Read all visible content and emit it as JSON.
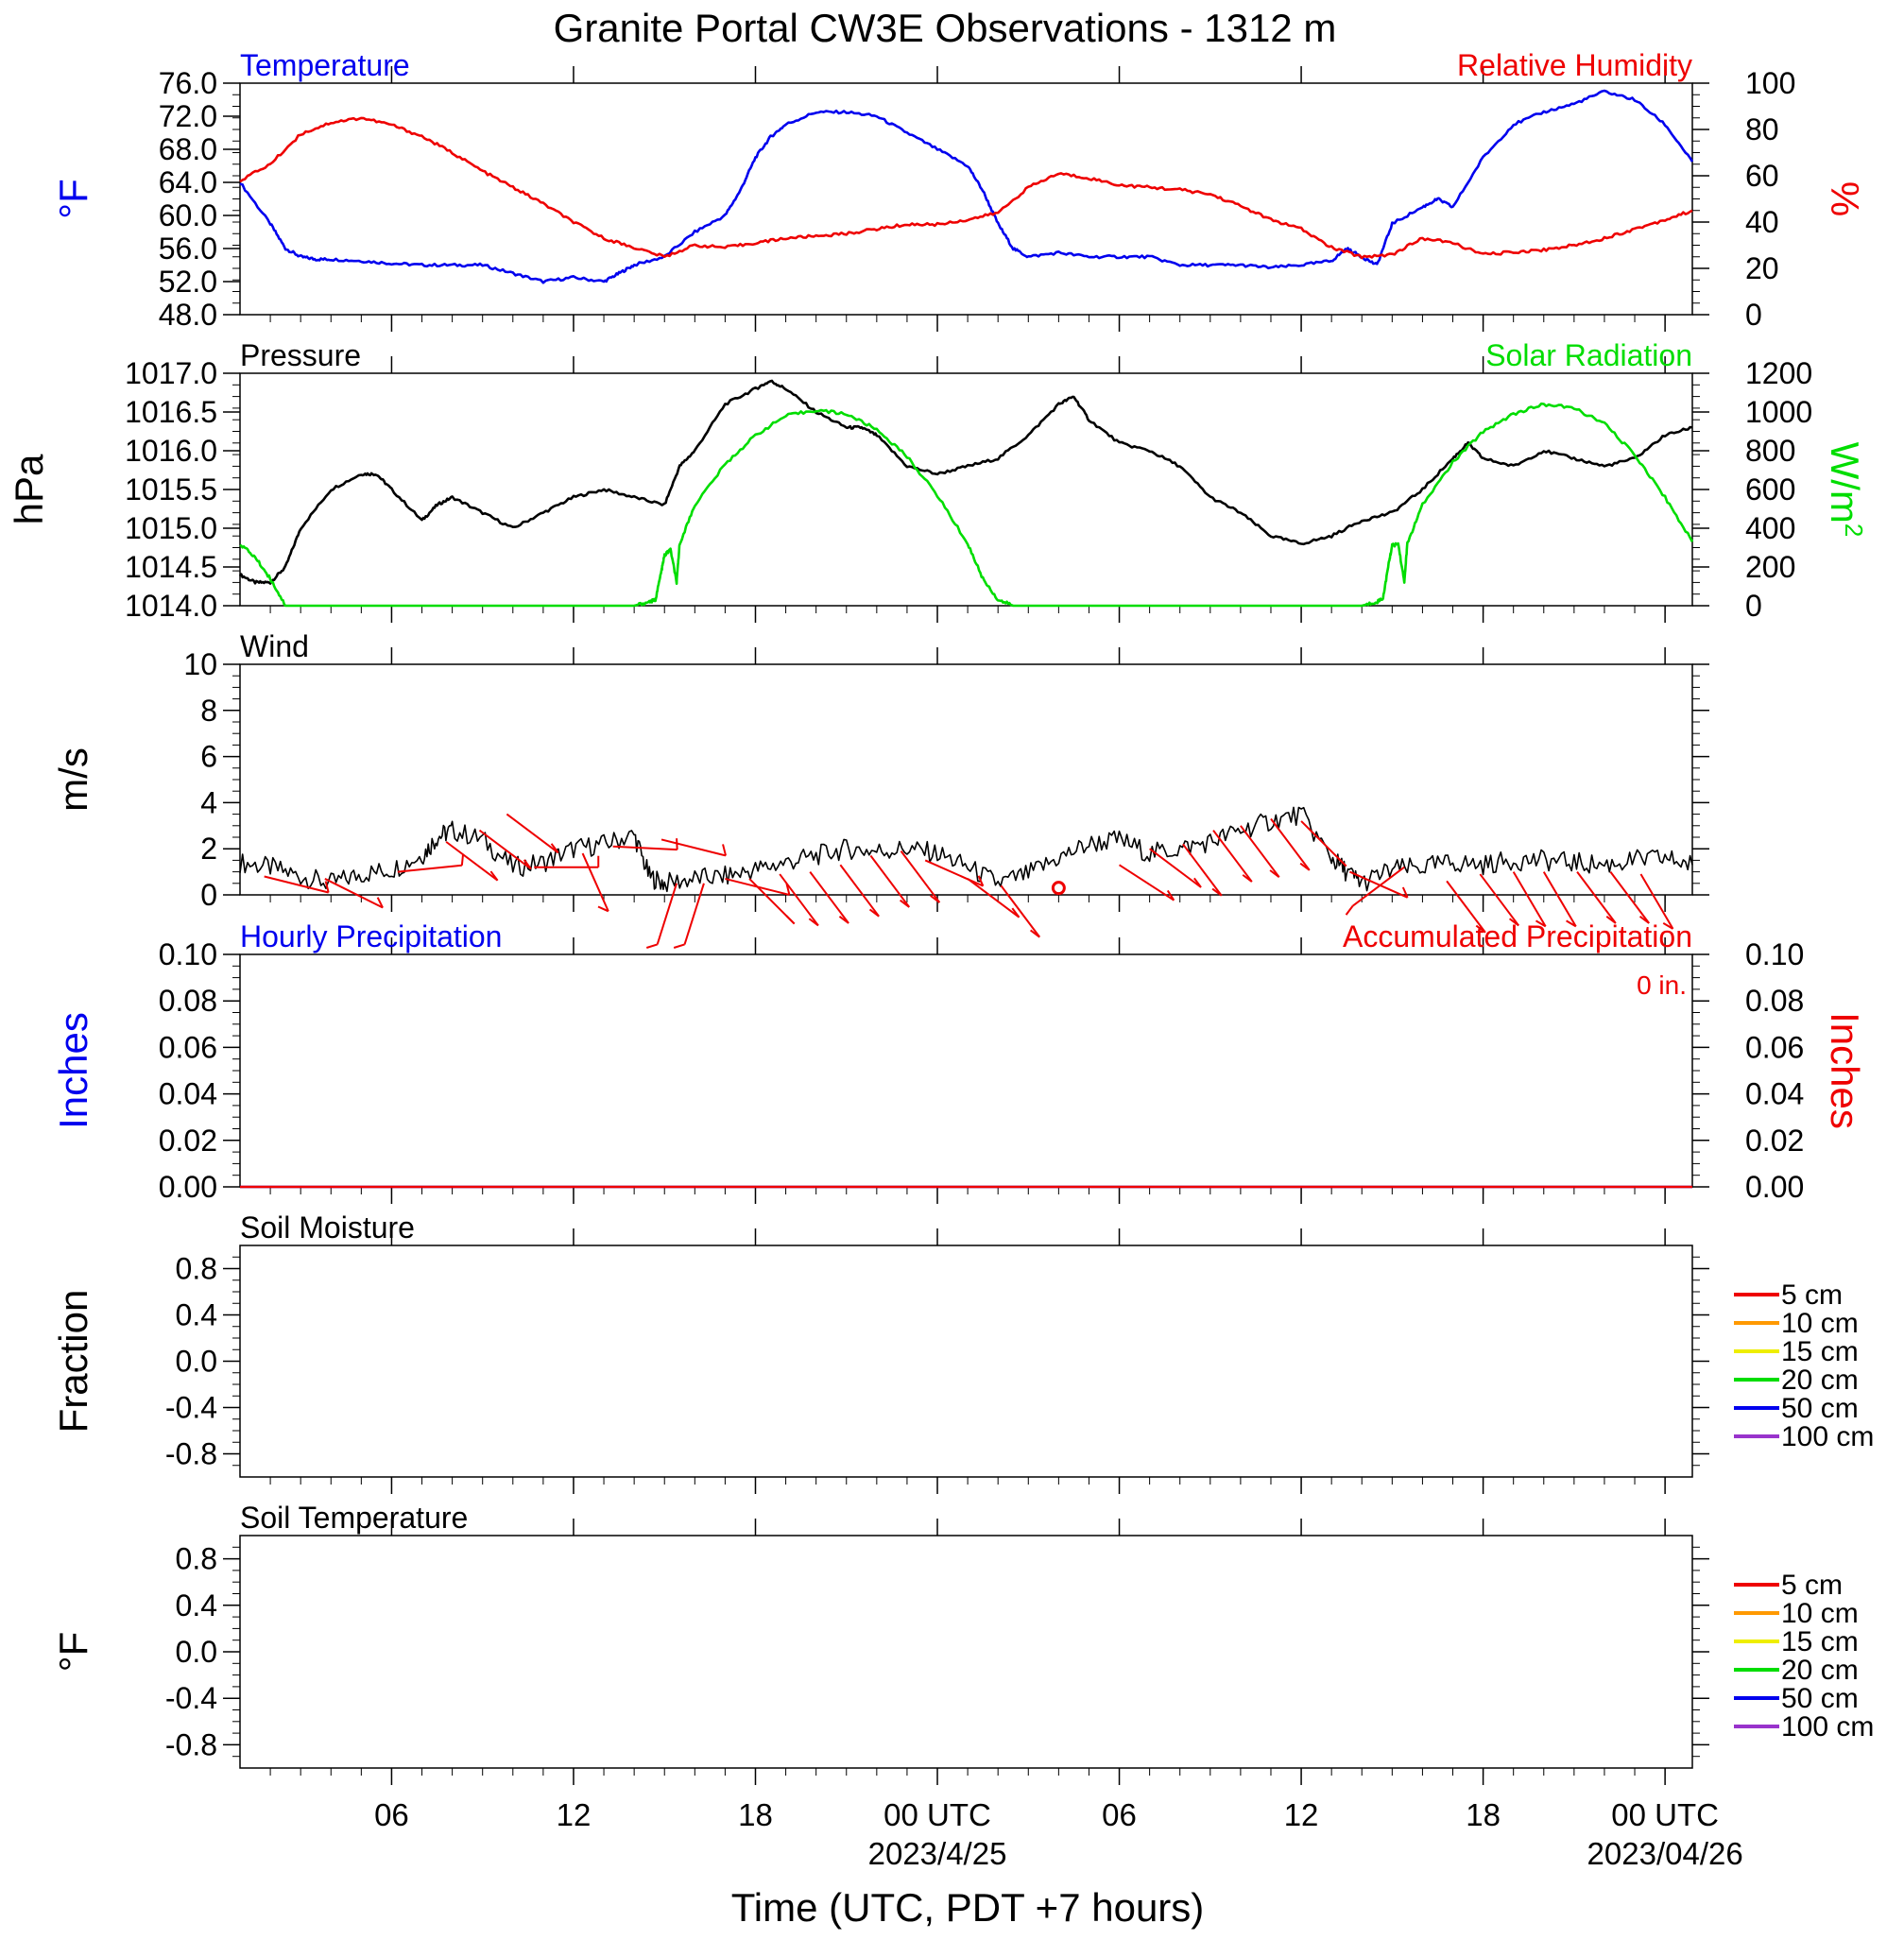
{
  "title": "Granite Portal CW3E Observations - 1312 m",
  "colors": {
    "blue": "#0000ee",
    "red": "#ee0000",
    "green": "#00dd00",
    "black": "#000000"
  },
  "x_axis": {
    "label": "Time (UTC, PDT +7 hours)",
    "range_hours": [
      0,
      47.9
    ],
    "ticks": [
      {
        "hour": 5,
        "label": "06"
      },
      {
        "hour": 11,
        "label": "12"
      },
      {
        "hour": 17,
        "label": "18"
      },
      {
        "hour": 23,
        "label": "00 UTC",
        "sublabel": "2023/4/25"
      },
      {
        "hour": 29,
        "label": "06"
      },
      {
        "hour": 35,
        "label": "12"
      },
      {
        "hour": 41,
        "label": "18"
      },
      {
        "hour": 47,
        "label": "00 UTC",
        "sublabel": "2023/04/26"
      }
    ]
  },
  "chart_data": [
    {
      "type": "line",
      "title": "Temperature",
      "title_right": "Relative Humidity",
      "ylabel": "°F",
      "ylabel_right": "%",
      "ylim": [
        48,
        76
      ],
      "ylim_right": [
        0,
        100
      ],
      "yticks": [
        "48.0",
        "52.0",
        "56.0",
        "60.0",
        "64.0",
        "68.0",
        "72.0",
        "76.0"
      ],
      "yticks_right": [
        "0",
        "20",
        "40",
        "60",
        "80",
        "100"
      ],
      "series": [
        {
          "name": "Temperature",
          "color": "blue",
          "axis": "left",
          "x": [
            0,
            1,
            1.5,
            2,
            2.5,
            3,
            4,
            5,
            6,
            7,
            8,
            9,
            10,
            11,
            12,
            12.5,
            13,
            14,
            15,
            16,
            16.5,
            17,
            17.5,
            18,
            19,
            20,
            21,
            22,
            23,
            24,
            24.5,
            25,
            25.5,
            26,
            27,
            28,
            29,
            30,
            31,
            32,
            33,
            34,
            35,
            36,
            36.5,
            37,
            37.5,
            38,
            39,
            39.5,
            40,
            41,
            42,
            43,
            44,
            45,
            46,
            47,
            47.9
          ],
          "y": [
            64,
            59,
            56,
            55,
            54.7,
            54.7,
            54.5,
            54.2,
            54,
            54,
            54,
            53,
            52,
            52.5,
            52,
            53,
            54,
            55,
            58,
            60,
            63,
            67,
            69.5,
            71,
            72.5,
            72.5,
            72,
            70,
            68,
            66,
            63,
            59,
            56,
            55,
            55.5,
            55,
            55,
            55,
            54,
            54,
            54,
            53.7,
            54,
            54.5,
            56,
            55,
            54,
            59,
            61,
            62,
            61,
            67,
            71,
            72.5,
            73.5,
            75,
            74,
            71,
            66.5
          ]
        },
        {
          "name": "Relative Humidity",
          "color": "red",
          "axis": "right",
          "x": [
            0,
            1,
            2,
            3,
            4,
            5,
            6,
            7,
            8,
            9,
            10,
            11,
            12,
            13,
            14,
            15,
            16,
            17,
            18,
            19,
            20,
            21,
            22,
            23,
            24,
            25,
            26,
            27,
            28,
            29,
            30,
            31,
            32,
            33,
            34,
            35,
            36,
            37,
            38,
            39,
            40,
            41,
            42,
            43,
            44,
            45,
            46,
            47,
            47.9
          ],
          "y": [
            58,
            65,
            78,
            83,
            85,
            82,
            77,
            70,
            62,
            55,
            48,
            40,
            33,
            29,
            25,
            30,
            29,
            31,
            33,
            34,
            35,
            37,
            39,
            39,
            41,
            44,
            55,
            61,
            59,
            56,
            55,
            54,
            52,
            47,
            41,
            37,
            29,
            25,
            26,
            33,
            31,
            26,
            27,
            28,
            30,
            33,
            37,
            41,
            45
          ]
        }
      ]
    },
    {
      "type": "line",
      "title": "Pressure",
      "title_right": "Solar Radiation",
      "ylabel": "hPa",
      "ylabel_right": "W/m",
      "ylabel_right_sup": "2",
      "ylim": [
        1014.0,
        1017.0
      ],
      "ylim_right": [
        0,
        1200
      ],
      "yticks": [
        "1014.0",
        "1014.5",
        "1015.0",
        "1015.5",
        "1016.0",
        "1016.5",
        "1017.0"
      ],
      "yticks_right": [
        "0",
        "200",
        "400",
        "600",
        "800",
        "1000",
        "1200"
      ],
      "series": [
        {
          "name": "Pressure",
          "color": "black",
          "axis": "left",
          "x": [
            0,
            0.5,
            1,
            1.5,
            2,
            3,
            4,
            4.5,
            5,
            6,
            6.5,
            7,
            8,
            9,
            10,
            11,
            12,
            13,
            14,
            14.5,
            15,
            16,
            17,
            17.5,
            18,
            19,
            20,
            20.5,
            21,
            22,
            23,
            24,
            25,
            26,
            27,
            27.5,
            28,
            29,
            30,
            31,
            32,
            33,
            34,
            35,
            36,
            37,
            38,
            39,
            40,
            40.5,
            41,
            42,
            43,
            44,
            45,
            46,
            47,
            47.9
          ],
          "y": [
            1014.4,
            1014.3,
            1014.3,
            1014.5,
            1015.0,
            1015.5,
            1015.7,
            1015.7,
            1015.5,
            1015.1,
            1015.3,
            1015.4,
            1015.2,
            1015.0,
            1015.2,
            1015.4,
            1015.5,
            1015.4,
            1015.3,
            1015.8,
            1016.0,
            1016.6,
            1016.8,
            1016.9,
            1016.8,
            1016.5,
            1016.3,
            1016.3,
            1016.2,
            1015.8,
            1015.7,
            1015.8,
            1015.9,
            1016.2,
            1016.6,
            1016.7,
            1016.4,
            1016.1,
            1016.0,
            1015.8,
            1015.4,
            1015.2,
            1014.9,
            1014.8,
            1014.9,
            1015.1,
            1015.2,
            1015.5,
            1015.9,
            1016.1,
            1015.9,
            1015.8,
            1016.0,
            1015.9,
            1015.8,
            1015.9,
            1016.2,
            1016.3
          ]
        },
        {
          "name": "Solar Radiation",
          "color": "green",
          "axis": "right",
          "x": [
            0,
            0.5,
            1,
            1.5,
            12,
            13,
            13.5,
            13.7,
            13.9,
            14,
            14.2,
            14.4,
            14.5,
            15,
            16,
            17,
            18,
            19,
            20,
            21,
            22,
            23,
            24,
            24.5,
            25,
            25.5,
            36,
            37,
            37.5,
            37.7,
            37.9,
            38,
            38.2,
            38.4,
            38.5,
            39,
            40,
            41,
            42,
            43,
            44,
            45,
            46,
            47,
            47.9
          ],
          "y": [
            320,
            250,
            140,
            0,
            0,
            0,
            20,
            30,
            180,
            260,
            290,
            120,
            320,
            520,
            730,
            880,
            980,
            1010,
            990,
            910,
            770,
            570,
            320,
            140,
            30,
            0,
            0,
            0,
            20,
            40,
            230,
            310,
            320,
            120,
            320,
            520,
            740,
            900,
            990,
            1040,
            1020,
            940,
            780,
            560,
            330
          ]
        }
      ]
    },
    {
      "type": "line",
      "title": "Wind",
      "ylabel": "m/s",
      "ylim": [
        0,
        10
      ],
      "yticks": [
        "0",
        "2",
        "4",
        "6",
        "8",
        "10"
      ],
      "series": [
        {
          "name": "Wind speed",
          "color": "black",
          "x": [
            0,
            1,
            2,
            3,
            4,
            5,
            6,
            6.5,
            7,
            8,
            9,
            10,
            11,
            12,
            13,
            13.5,
            14,
            15,
            16,
            17,
            18,
            19,
            20,
            21,
            22,
            23,
            24,
            25,
            26,
            27,
            28,
            29,
            30,
            31,
            32,
            33,
            34,
            35,
            36,
            36.5,
            37,
            38,
            39,
            40,
            41,
            42,
            43,
            44,
            45,
            46,
            47,
            47.9
          ],
          "y": [
            1.4,
            1.2,
            0.8,
            0.5,
            0.9,
            1.1,
            1.7,
            2.5,
            2.8,
            2.4,
            1.2,
            1.4,
            2.0,
            2.2,
            2.6,
            0.8,
            0.5,
            0.7,
            0.8,
            1.1,
            1.4,
            1.7,
            2.0,
            1.9,
            2.0,
            1.8,
            1.2,
            0.5,
            0.9,
            1.6,
            2.2,
            2.4,
            1.8,
            2.0,
            2.3,
            2.8,
            3.2,
            3.5,
            1.6,
            1.0,
            0.5,
            1.1,
            1.2,
            1.4,
            1.3,
            1.5,
            1.5,
            1.4,
            1.3,
            1.5,
            1.6,
            1.3
          ]
        }
      ],
      "barbs": [
        {
          "x": 0.8,
          "s": 0.8,
          "dx": 1,
          "dy": 0.25
        },
        {
          "x": 2.8,
          "s": 0.7,
          "dx": 0.9,
          "dy": 0.45
        },
        {
          "x": 5.2,
          "s": 1.0,
          "dx": 1,
          "dy": -0.1
        },
        {
          "x": 6.8,
          "s": 2.3,
          "dx": 0.8,
          "dy": 0.6
        },
        {
          "x": 7.9,
          "s": 2.8,
          "dx": 0.8,
          "dy": 0.6
        },
        {
          "x": 8.8,
          "s": 3.5,
          "dx": 0.8,
          "dy": 0.6
        },
        {
          "x": 9.7,
          "s": 1.2,
          "dx": 1,
          "dy": 0
        },
        {
          "x": 11.3,
          "s": 1.8,
          "dx": 0.4,
          "dy": 0.9
        },
        {
          "x": 12.3,
          "s": 2.1,
          "dx": 1,
          "dy": 0.05
        },
        {
          "x": 13.9,
          "s": 2.4,
          "dx": 1,
          "dy": 0.25
        },
        {
          "x": 14.4,
          "s": 0.5,
          "dx": -0.3,
          "dy": 0.95
        },
        {
          "x": 15.3,
          "s": 0.5,
          "dx": -0.3,
          "dy": 0.95
        },
        {
          "x": 16.0,
          "s": 0.7,
          "dx": 1,
          "dy": 0.25
        },
        {
          "x": 16.8,
          "s": 0.7,
          "dx": 0.7,
          "dy": 0.7
        },
        {
          "x": 17.8,
          "s": 0.9,
          "dx": 0.6,
          "dy": 0.8
        },
        {
          "x": 18.8,
          "s": 1.0,
          "dx": 0.6,
          "dy": 0.8
        },
        {
          "x": 19.8,
          "s": 1.3,
          "dx": 0.6,
          "dy": 0.8
        },
        {
          "x": 20.8,
          "s": 1.7,
          "dx": 0.6,
          "dy": 0.8
        },
        {
          "x": 21.8,
          "s": 1.9,
          "dx": 0.6,
          "dy": 0.8
        },
        {
          "x": 22.6,
          "s": 1.5,
          "dx": 0.9,
          "dy": 0.4
        },
        {
          "x": 24.0,
          "s": 0.7,
          "dx": 0.8,
          "dy": 0.6
        },
        {
          "x": 25.1,
          "s": 0.4,
          "dx": 0.6,
          "dy": 0.8
        },
        {
          "x": 29.0,
          "s": 1.3,
          "dx": 0.85,
          "dy": 0.55
        },
        {
          "x": 30.0,
          "s": 2.0,
          "dx": 0.8,
          "dy": 0.6
        },
        {
          "x": 31.1,
          "s": 2.2,
          "dx": 0.6,
          "dy": 0.8
        },
        {
          "x": 32.1,
          "s": 2.8,
          "dx": 0.6,
          "dy": 0.8
        },
        {
          "x": 33.0,
          "s": 3.0,
          "dx": 0.6,
          "dy": 0.8
        },
        {
          "x": 34.0,
          "s": 3.3,
          "dx": 0.6,
          "dy": 0.8
        },
        {
          "x": 35.0,
          "s": 3.2,
          "dx": 0.7,
          "dy": 0.7
        },
        {
          "x": 36.6,
          "s": 1.0,
          "dx": 0.9,
          "dy": 0.4
        },
        {
          "x": 38.4,
          "s": 1.2,
          "dx": -0.8,
          "dy": 0.6
        },
        {
          "x": 39.8,
          "s": 0.6,
          "dx": 0.6,
          "dy": 0.8
        },
        {
          "x": 40.9,
          "s": 0.9,
          "dx": 0.6,
          "dy": 0.8
        },
        {
          "x": 42.0,
          "s": 1.0,
          "dx": 0.5,
          "dy": 0.85
        },
        {
          "x": 43.0,
          "s": 1.0,
          "dx": 0.5,
          "dy": 0.85
        },
        {
          "x": 44.1,
          "s": 1.0,
          "dx": 0.6,
          "dy": 0.8
        },
        {
          "x": 45.2,
          "s": 1.0,
          "dx": 0.6,
          "dy": 0.8
        },
        {
          "x": 46.2,
          "s": 0.9,
          "dx": 0.5,
          "dy": 0.85
        }
      ],
      "calm": {
        "x": 27.0,
        "y": 0.3
      }
    },
    {
      "type": "line",
      "title": "Hourly Precipitation",
      "title_right": "Accumulated Precipitation",
      "annotation": "0 in.",
      "ylabel": "Inches",
      "ylabel_right": "Inches",
      "ylim": [
        0,
        0.1
      ],
      "ylim_right": [
        0,
        0.1
      ],
      "yticks": [
        "0.00",
        "0.02",
        "0.04",
        "0.06",
        "0.08",
        "0.10"
      ],
      "yticks_right": [
        "0.00",
        "0.02",
        "0.04",
        "0.06",
        "0.08",
        "0.10"
      ],
      "series": [
        {
          "name": "Hourly Precipitation",
          "color": "blue",
          "axis": "left",
          "x": [
            0,
            47.9
          ],
          "y": [
            0,
            0
          ]
        },
        {
          "name": "Accumulated Precipitation",
          "color": "red",
          "axis": "right",
          "x": [
            0,
            47.9
          ],
          "y": [
            0,
            0
          ]
        }
      ]
    },
    {
      "type": "line",
      "title": "Soil Moisture",
      "ylabel": "Fraction",
      "ylim": [
        -1,
        1
      ],
      "yticks": [
        "-0.8",
        "-0.4",
        "0.0",
        "0.4",
        "0.8"
      ],
      "legend": [
        {
          "label": "5 cm",
          "color": "#ee0000"
        },
        {
          "label": "10 cm",
          "color": "#ff9900"
        },
        {
          "label": "15 cm",
          "color": "#eeee00"
        },
        {
          "label": "20 cm",
          "color": "#00dd00"
        },
        {
          "label": "50 cm",
          "color": "#0000ee"
        },
        {
          "label": "100 cm",
          "color": "#9933cc"
        }
      ],
      "series": []
    },
    {
      "type": "line",
      "title": "Soil Temperature",
      "ylabel": "°F",
      "ylim": [
        -1,
        1
      ],
      "yticks": [
        "-0.8",
        "-0.4",
        "0.0",
        "0.4",
        "0.8"
      ],
      "legend": [
        {
          "label": "5 cm",
          "color": "#ee0000"
        },
        {
          "label": "10 cm",
          "color": "#ff9900"
        },
        {
          "label": "15 cm",
          "color": "#eeee00"
        },
        {
          "label": "20 cm",
          "color": "#00dd00"
        },
        {
          "label": "50 cm",
          "color": "#0000ee"
        },
        {
          "label": "100 cm",
          "color": "#9933cc"
        }
      ],
      "series": []
    }
  ]
}
